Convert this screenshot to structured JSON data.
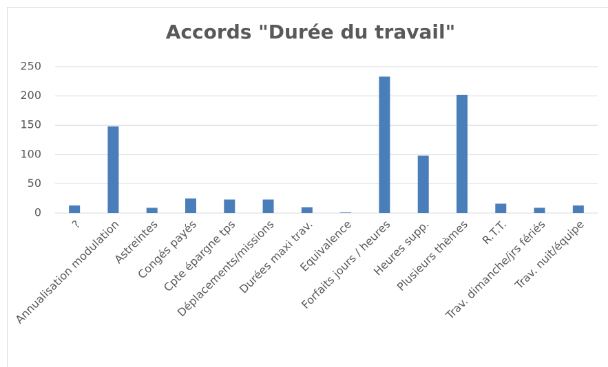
{
  "chart_data": {
    "type": "bar",
    "title": "Accords \"Durée du travail\"",
    "categories": [
      "?",
      "Annualisation modulation",
      "Astreintes",
      "Congés payés",
      "Cpte épargne tps",
      "Déplacements/missions",
      "Durées maxi trav.",
      "Equivalence",
      "Forfaits jours / heures",
      "Heures supp.",
      "Plusieurs thèmes",
      "R.T.T.",
      "Trav. dimanche/jrs fériés",
      "Trav. nuit/équipe"
    ],
    "values": [
      13,
      148,
      9,
      25,
      23,
      23,
      10,
      1,
      233,
      98,
      202,
      16,
      9,
      13
    ],
    "color": "#4a7ebb",
    "ylim": [
      0,
      250
    ],
    "yticks": [
      0,
      50,
      100,
      150,
      200,
      250
    ],
    "grid": true
  }
}
